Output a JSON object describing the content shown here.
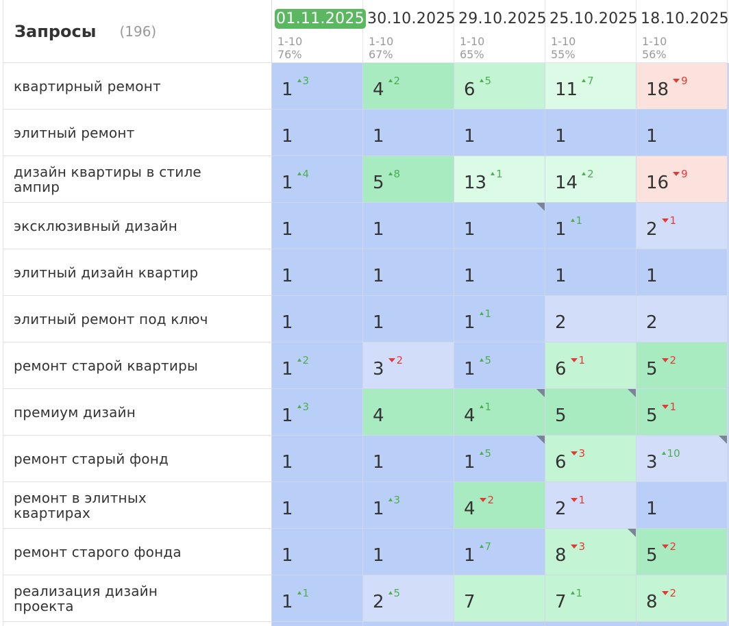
{
  "header": {
    "title": "Запросы",
    "count": "(196)"
  },
  "columns": [
    {
      "date": "01.11.2025",
      "range": "1-10",
      "share": "76%",
      "active": true
    },
    {
      "date": "30.10.2025",
      "range": "1-10",
      "share": "67%"
    },
    {
      "date": "29.10.2025",
      "range": "1-10",
      "share": "65%"
    },
    {
      "date": "25.10.2025",
      "range": "1-10",
      "share": "55%"
    },
    {
      "date": "18.10.2025",
      "range": "1-10",
      "share": "56%"
    }
  ],
  "rows": [
    {
      "query": "квартирный ремонт",
      "cells": [
        {
          "pos": 1,
          "up": 3
        },
        {
          "pos": 4,
          "up": 2
        },
        {
          "pos": 6,
          "up": 5
        },
        {
          "pos": 11,
          "up": 7
        },
        {
          "pos": 18,
          "down": 9
        }
      ]
    },
    {
      "query": "элитный ремонт",
      "cells": [
        {
          "pos": 1
        },
        {
          "pos": 1
        },
        {
          "pos": 1
        },
        {
          "pos": 1
        },
        {
          "pos": 1
        }
      ]
    },
    {
      "query": "дизайн квартиры в стиле ампир",
      "cells": [
        {
          "pos": 1,
          "up": 4
        },
        {
          "pos": 5,
          "up": 8
        },
        {
          "pos": 13,
          "up": 1
        },
        {
          "pos": 14,
          "up": 2
        },
        {
          "pos": 16,
          "down": 9
        }
      ]
    },
    {
      "query": "эксклюзивный дизайн",
      "cells": [
        {
          "pos": 1
        },
        {
          "pos": 1
        },
        {
          "pos": 1,
          "corner": true
        },
        {
          "pos": 1,
          "up": 1
        },
        {
          "pos": 2,
          "down": 1
        }
      ]
    },
    {
      "query": "элитный дизайн квартир",
      "cells": [
        {
          "pos": 1
        },
        {
          "pos": 1
        },
        {
          "pos": 1
        },
        {
          "pos": 1
        },
        {
          "pos": 1
        }
      ]
    },
    {
      "query": "элитный ремонт под ключ",
      "cells": [
        {
          "pos": 1
        },
        {
          "pos": 1
        },
        {
          "pos": 1,
          "up": 1
        },
        {
          "pos": 2
        },
        {
          "pos": 2
        }
      ]
    },
    {
      "query": "ремонт старой квартиры",
      "cells": [
        {
          "pos": 1,
          "up": 2
        },
        {
          "pos": 3,
          "down": 2
        },
        {
          "pos": 1,
          "up": 5
        },
        {
          "pos": 6,
          "down": 1
        },
        {
          "pos": 5,
          "down": 2
        }
      ]
    },
    {
      "query": "премиум дизайн",
      "cells": [
        {
          "pos": 1,
          "up": 3
        },
        {
          "pos": 4
        },
        {
          "pos": 4,
          "up": 1,
          "corner": true
        },
        {
          "pos": 5,
          "corner": true
        },
        {
          "pos": 5,
          "down": 1
        }
      ]
    },
    {
      "query": "ремонт старый фонд",
      "cells": [
        {
          "pos": 1
        },
        {
          "pos": 1
        },
        {
          "pos": 1,
          "up": 5,
          "corner": true
        },
        {
          "pos": 6,
          "down": 3
        },
        {
          "pos": 3,
          "up": 10,
          "corner": true
        }
      ]
    },
    {
      "query": "ремонт в элитных квартирах",
      "cells": [
        {
          "pos": 1
        },
        {
          "pos": 1,
          "up": 3
        },
        {
          "pos": 4,
          "down": 2
        },
        {
          "pos": 2,
          "down": 1
        },
        {
          "pos": 1
        }
      ]
    },
    {
      "query": "ремонт старого фонда",
      "cells": [
        {
          "pos": 1
        },
        {
          "pos": 1
        },
        {
          "pos": 1,
          "up": 7
        },
        {
          "pos": 8,
          "down": 3,
          "corner": true
        },
        {
          "pos": 5,
          "down": 2
        }
      ]
    },
    {
      "query": "реализация дизайн проекта",
      "cells": [
        {
          "pos": 1,
          "up": 1
        },
        {
          "pos": 2,
          "up": 5
        },
        {
          "pos": 7
        },
        {
          "pos": 7,
          "up": 1
        },
        {
          "pos": 8,
          "down": 2
        }
      ]
    }
  ]
}
